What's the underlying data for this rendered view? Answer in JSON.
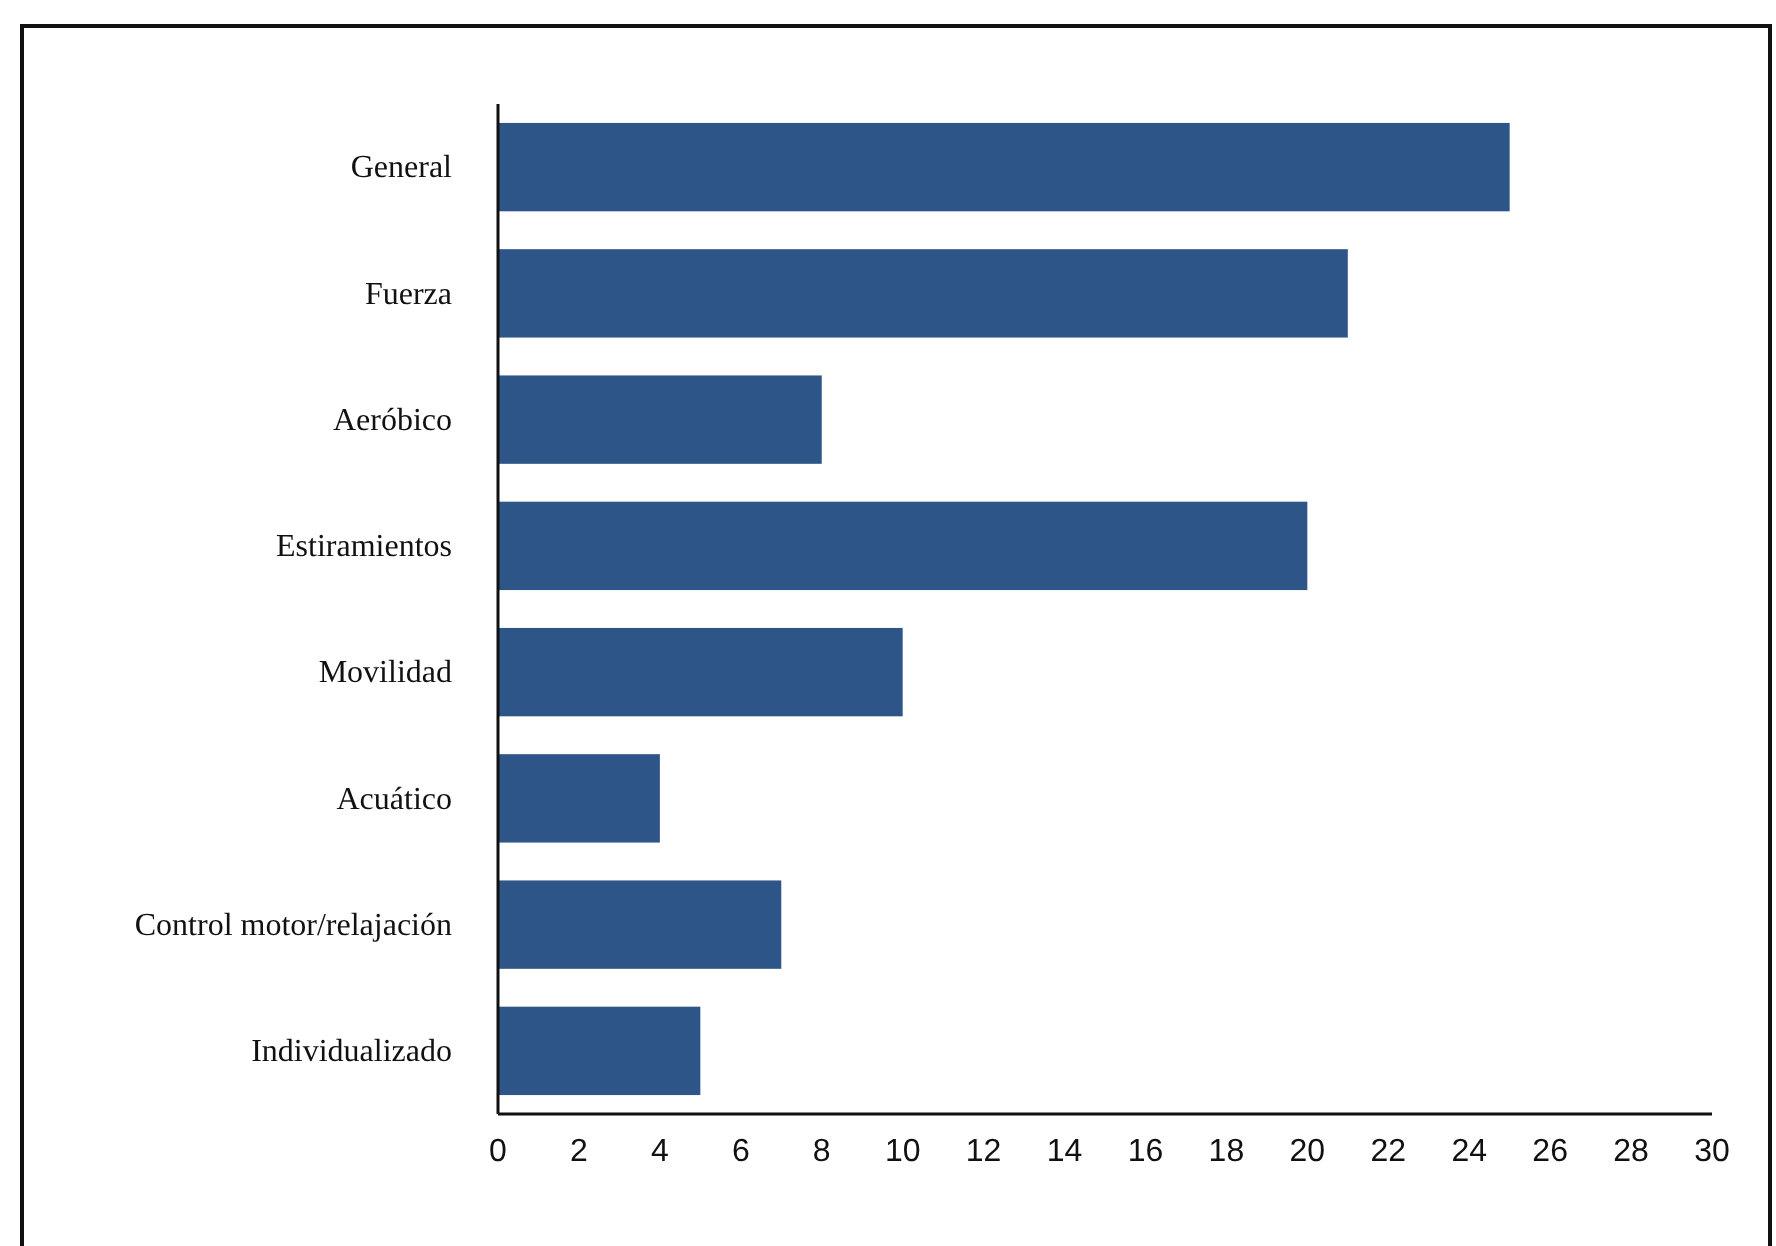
{
  "chart_data": {
    "type": "bar",
    "orientation": "horizontal",
    "categories": [
      "General",
      "Fuerza",
      "Aeróbico",
      "Estiramientos",
      "Movilidad",
      "Acuático",
      "Control motor/relajación",
      "Individualizado"
    ],
    "values": [
      25,
      21,
      8,
      20,
      10,
      4,
      7,
      5
    ],
    "color": "#2e5587",
    "xlim": [
      0,
      30
    ],
    "xticks": [
      0,
      2,
      4,
      6,
      8,
      10,
      12,
      14,
      16,
      18,
      20,
      22,
      24,
      26,
      28,
      30
    ],
    "tick_labels": "xy"
  }
}
